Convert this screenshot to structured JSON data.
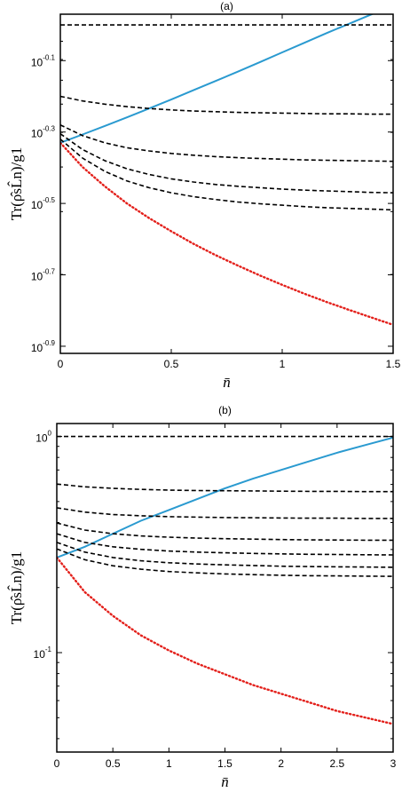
{
  "chart_data": [
    {
      "type": "line",
      "title": "(a)",
      "xlabel": "n̄",
      "ylabel": "Tr(ρ̂sL̂n)/g1",
      "xlim": [
        0,
        1.5
      ],
      "ylim": [
        -0.92,
        0.03
      ],
      "yscale": "log10",
      "xticks": [
        0,
        0.5,
        1,
        1.5
      ],
      "xtick_labels": [
        "0",
        "0.5",
        "1",
        "1.5"
      ],
      "yticks": [
        -0.1,
        -0.3,
        -0.5,
        -0.7,
        -0.9
      ],
      "ytick_labels": [
        {
          "base": "10",
          "exp": "-0.1"
        },
        {
          "base": "10",
          "exp": "-0.3"
        },
        {
          "base": "10",
          "exp": "-0.5"
        },
        {
          "base": "10",
          "exp": "-0.7"
        },
        {
          "base": "10",
          "exp": "-0.9"
        }
      ],
      "grid": false,
      "x": [
        0,
        0.1,
        0.2,
        0.3,
        0.4,
        0.5,
        0.6,
        0.7,
        0.8,
        0.9,
        1.0,
        1.1,
        1.2,
        1.3,
        1.4,
        1.5
      ],
      "series": [
        {
          "style": "solid",
          "color": "#2a9ad0",
          "values": [
            -0.33,
            -0.307,
            -0.283,
            -0.259,
            -0.234,
            -0.209,
            -0.183,
            -0.157,
            -0.131,
            -0.104,
            -0.077,
            -0.05,
            -0.023,
            0.003,
            0.029,
            0.052
          ]
        },
        {
          "style": "dotted",
          "color": "#e3201b",
          "values": [
            -0.33,
            -0.398,
            -0.452,
            -0.5,
            -0.541,
            -0.578,
            -0.613,
            -0.645,
            -0.674,
            -0.702,
            -0.728,
            -0.753,
            -0.776,
            -0.798,
            -0.819,
            -0.84
          ]
        },
        {
          "style": "dashed",
          "color": "#000000",
          "values": [
            0.0,
            0.0,
            0.0,
            0.0,
            0.0,
            0.0,
            0.0,
            0.0,
            0.0,
            0.0,
            0.0,
            0.0,
            0.0,
            0.0,
            0.0,
            0.0
          ]
        },
        {
          "style": "dashed",
          "color": "#000000",
          "values": [
            -0.2,
            -0.213,
            -0.222,
            -0.229,
            -0.234,
            -0.238,
            -0.241,
            -0.243,
            -0.245,
            -0.246,
            -0.247,
            -0.248,
            -0.249,
            -0.249,
            -0.25,
            -0.25
          ]
        },
        {
          "style": "dashed",
          "color": "#000000",
          "values": [
            -0.28,
            -0.31,
            -0.33,
            -0.344,
            -0.353,
            -0.36,
            -0.365,
            -0.369,
            -0.372,
            -0.374,
            -0.376,
            -0.378,
            -0.379,
            -0.38,
            -0.381,
            -0.382
          ]
        },
        {
          "style": "dashed",
          "color": "#000000",
          "values": [
            -0.305,
            -0.349,
            -0.38,
            -0.403,
            -0.419,
            -0.431,
            -0.44,
            -0.447,
            -0.452,
            -0.456,
            -0.46,
            -0.463,
            -0.465,
            -0.467,
            -0.469,
            -0.47
          ]
        },
        {
          "style": "dashed",
          "color": "#000000",
          "values": [
            -0.32,
            -0.373,
            -0.41,
            -0.437,
            -0.456,
            -0.47,
            -0.481,
            -0.489,
            -0.496,
            -0.501,
            -0.505,
            -0.509,
            -0.512,
            -0.514,
            -0.516,
            -0.518
          ]
        }
      ]
    },
    {
      "type": "line",
      "title": "(b)",
      "xlabel": "n̄",
      "ylabel": "Tr(ρ̂sL̂n)/g1",
      "xlim": [
        0,
        3
      ],
      "ylim": [
        -1.46,
        0.06
      ],
      "yscale": "log10",
      "xticks": [
        0,
        0.5,
        1,
        1.5,
        2,
        2.5,
        3
      ],
      "xtick_labels": [
        "0",
        "0.5",
        "1",
        "1.5",
        "2",
        "2.5",
        "3"
      ],
      "yticks": [
        0,
        -1
      ],
      "ytick_labels": [
        {
          "base": "10",
          "exp": "0"
        },
        {
          "base": "10",
          "exp": "-1"
        }
      ],
      "grid": false,
      "x": [
        0,
        0.25,
        0.5,
        0.75,
        1.0,
        1.25,
        1.5,
        1.75,
        2.0,
        2.25,
        2.5,
        2.75,
        3.0
      ],
      "series": [
        {
          "style": "solid",
          "color": "#2a9ad0",
          "values": [
            -0.56,
            -0.51,
            -0.45,
            -0.39,
            -0.34,
            -0.29,
            -0.24,
            -0.195,
            -0.155,
            -0.115,
            -0.075,
            -0.04,
            -0.005
          ]
        },
        {
          "style": "dotted",
          "color": "#e3201b",
          "values": [
            -0.56,
            -0.72,
            -0.83,
            -0.92,
            -0.99,
            -1.05,
            -1.1,
            -1.15,
            -1.19,
            -1.23,
            -1.27,
            -1.3,
            -1.33
          ]
        },
        {
          "style": "dashed",
          "color": "#000000",
          "values": [
            0.0,
            0.0,
            0.0,
            0.0,
            0.0,
            0.0,
            0.0,
            0.0,
            0.0,
            0.0,
            0.0,
            0.0,
            0.0
          ]
        },
        {
          "style": "dashed",
          "color": "#000000",
          "values": [
            -0.22,
            -0.233,
            -0.24,
            -0.245,
            -0.248,
            -0.25,
            -0.251,
            -0.252,
            -0.253,
            -0.254,
            -0.254,
            -0.255,
            -0.255
          ]
        },
        {
          "style": "dashed",
          "color": "#000000",
          "values": [
            -0.33,
            -0.35,
            -0.361,
            -0.367,
            -0.371,
            -0.373,
            -0.375,
            -0.376,
            -0.377,
            -0.378,
            -0.378,
            -0.379,
            -0.379
          ]
        },
        {
          "style": "dashed",
          "color": "#000000",
          "values": [
            -0.4,
            -0.433,
            -0.45,
            -0.46,
            -0.466,
            -0.47,
            -0.473,
            -0.475,
            -0.477,
            -0.478,
            -0.479,
            -0.48,
            -0.48
          ]
        },
        {
          "style": "dashed",
          "color": "#000000",
          "values": [
            -0.45,
            -0.49,
            -0.51,
            -0.522,
            -0.53,
            -0.535,
            -0.538,
            -0.541,
            -0.543,
            -0.545,
            -0.546,
            -0.547,
            -0.548
          ]
        },
        {
          "style": "dashed",
          "color": "#000000",
          "values": [
            -0.49,
            -0.535,
            -0.56,
            -0.575,
            -0.584,
            -0.59,
            -0.594,
            -0.597,
            -0.6,
            -0.602,
            -0.603,
            -0.604,
            -0.605
          ]
        },
        {
          "style": "dashed",
          "color": "#000000",
          "values": [
            -0.52,
            -0.57,
            -0.598,
            -0.614,
            -0.625,
            -0.631,
            -0.636,
            -0.639,
            -0.642,
            -0.644,
            -0.645,
            -0.646,
            -0.647
          ]
        }
      ]
    }
  ]
}
